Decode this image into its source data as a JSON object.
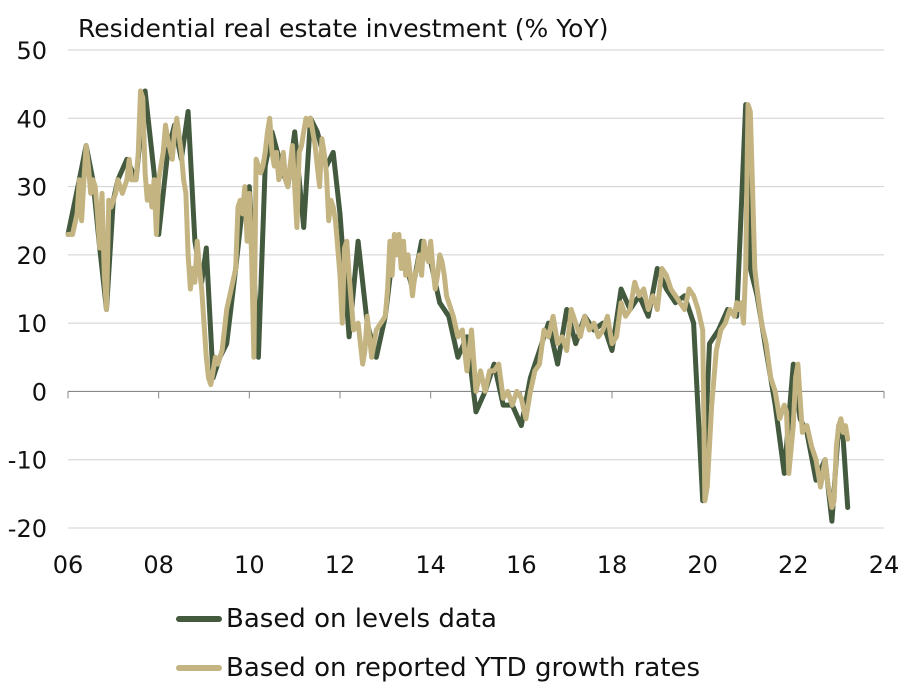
{
  "colors": {
    "levels": "#445a3e",
    "ytd": "#c4b482",
    "grid": "#d0d0d0",
    "axis": "#888888",
    "text": "#111111"
  },
  "chart_data": {
    "type": "line",
    "title": "Residential real estate investment (% YoY)",
    "xlabel": "",
    "ylabel": "",
    "xlim": [
      2006,
      2024
    ],
    "ylim": [
      -20,
      50
    ],
    "x_tick_labels": [
      "06",
      "08",
      "10",
      "12",
      "14",
      "16",
      "18",
      "20",
      "22",
      "24"
    ],
    "y_tick_labels": [
      "50",
      "40",
      "30",
      "20",
      "10",
      "0",
      "-10",
      "-20"
    ],
    "grid": "horizontal",
    "legend_placement": "bottom",
    "series": [
      {
        "name": "Based on levels data",
        "color": "#445a3e",
        "x": [
          2006.0,
          2006.25,
          2006.4,
          2006.55,
          2006.7,
          2006.85,
          2007.0,
          2007.1,
          2007.3,
          2007.5,
          2007.7,
          2007.9,
          2008.0,
          2008.2,
          2008.35,
          2008.5,
          2008.65,
          2008.8,
          2008.95,
          2009.05,
          2009.2,
          2009.35,
          2009.5,
          2009.7,
          2009.85,
          2010.0,
          2010.2,
          2010.35,
          2010.5,
          2010.7,
          2010.85,
          2011.0,
          2011.2,
          2011.35,
          2011.5,
          2011.7,
          2011.85,
          2012.0,
          2012.2,
          2012.4,
          2012.6,
          2012.8,
          2013.0,
          2013.2,
          2013.4,
          2013.6,
          2013.8,
          2014.0,
          2014.2,
          2014.4,
          2014.6,
          2014.8,
          2015.0,
          2015.2,
          2015.4,
          2015.6,
          2015.8,
          2016.0,
          2016.2,
          2016.4,
          2016.6,
          2016.8,
          2017.0,
          2017.2,
          2017.4,
          2017.6,
          2017.8,
          2018.0,
          2018.2,
          2018.4,
          2018.6,
          2018.8,
          2019.0,
          2019.2,
          2019.4,
          2019.6,
          2019.8,
          2020.0,
          2020.15,
          2020.35,
          2020.55,
          2020.75,
          2020.95,
          2021.05,
          2021.2,
          2021.4,
          2021.6,
          2021.8,
          2022.0,
          2022.15,
          2022.3,
          2022.5,
          2022.7,
          2022.85,
          2023.0,
          2023.1,
          2023.2
        ],
        "y": [
          23,
          31,
          36,
          31,
          21,
          12,
          28,
          31,
          34,
          31,
          44,
          32,
          23,
          35,
          39,
          34,
          41,
          22,
          16,
          21,
          2,
          5,
          7,
          18,
          27,
          30,
          5,
          33,
          38,
          33,
          30,
          38,
          24,
          40,
          38,
          33,
          35,
          26,
          8,
          22,
          10,
          5,
          11,
          22,
          20,
          15,
          22,
          19,
          13,
          11,
          5,
          8,
          -3,
          0,
          4,
          -2,
          -2,
          -5,
          2,
          6,
          10,
          4,
          12,
          7,
          11,
          9,
          10,
          6,
          15,
          12,
          14,
          11,
          18,
          15,
          13,
          14,
          10,
          -16,
          7,
          9,
          12,
          11,
          42,
          18,
          14,
          6,
          -2,
          -12,
          4,
          -4,
          -6,
          -13,
          -10,
          -19,
          -5,
          -7,
          -17
        ]
      },
      {
        "name": "Based on reported YTD growth rates",
        "color": "#c4b482",
        "x": [
          2006.0,
          2006.1,
          2006.2,
          2006.25,
          2006.3,
          2006.35,
          2006.4,
          2006.45,
          2006.5,
          2006.55,
          2006.6,
          2006.65,
          2006.7,
          2006.75,
          2006.8,
          2006.85,
          2006.9,
          2006.95,
          2007.0,
          2007.05,
          2007.1,
          2007.2,
          2007.3,
          2007.35,
          2007.4,
          2007.5,
          2007.55,
          2007.6,
          2007.65,
          2007.7,
          2007.75,
          2007.8,
          2007.85,
          2007.9,
          2007.95,
          2008.0,
          2008.05,
          2008.1,
          2008.15,
          2008.2,
          2008.3,
          2008.35,
          2008.4,
          2008.5,
          2008.55,
          2008.6,
          2008.65,
          2008.7,
          2008.75,
          2008.8,
          2008.85,
          2008.9,
          2008.95,
          2009.0,
          2009.05,
          2009.1,
          2009.15,
          2009.2,
          2009.25,
          2009.3,
          2009.35,
          2009.4,
          2009.5,
          2009.6,
          2009.7,
          2009.75,
          2009.8,
          2009.85,
          2009.9,
          2009.95,
          2010.0,
          2010.05,
          2010.1,
          2010.15,
          2010.2,
          2010.25,
          2010.3,
          2010.35,
          2010.4,
          2010.45,
          2010.5,
          2010.55,
          2010.6,
          2010.65,
          2010.7,
          2010.75,
          2010.8,
          2010.85,
          2010.9,
          2010.95,
          2011.0,
          2011.05,
          2011.1,
          2011.15,
          2011.2,
          2011.25,
          2011.3,
          2011.35,
          2011.4,
          2011.45,
          2011.5,
          2011.55,
          2011.6,
          2011.65,
          2011.7,
          2011.75,
          2011.8,
          2011.85,
          2011.9,
          2012.0,
          2012.05,
          2012.1,
          2012.15,
          2012.2,
          2012.3,
          2012.4,
          2012.5,
          2012.55,
          2012.6,
          2012.7,
          2012.8,
          2012.9,
          2013.0,
          2013.05,
          2013.1,
          2013.15,
          2013.2,
          2013.25,
          2013.3,
          2013.35,
          2013.4,
          2013.45,
          2013.5,
          2013.55,
          2013.6,
          2013.65,
          2013.7,
          2013.75,
          2013.8,
          2013.85,
          2013.9,
          2013.95,
          2014.0,
          2014.05,
          2014.1,
          2014.15,
          2014.2,
          2014.25,
          2014.3,
          2014.35,
          2014.4,
          2014.5,
          2014.6,
          2014.7,
          2014.8,
          2014.9,
          2015.0,
          2015.1,
          2015.2,
          2015.3,
          2015.4,
          2015.5,
          2015.6,
          2015.7,
          2015.8,
          2015.9,
          2016.0,
          2016.1,
          2016.2,
          2016.3,
          2016.4,
          2016.5,
          2016.6,
          2016.7,
          2016.8,
          2016.9,
          2017.0,
          2017.1,
          2017.2,
          2017.3,
          2017.4,
          2017.5,
          2017.6,
          2017.7,
          2017.8,
          2017.9,
          2018.0,
          2018.1,
          2018.2,
          2018.3,
          2018.4,
          2018.5,
          2018.6,
          2018.7,
          2018.8,
          2018.9,
          2019.0,
          2019.1,
          2019.2,
          2019.3,
          2019.4,
          2019.5,
          2019.6,
          2019.7,
          2019.8,
          2019.9,
          2020.0,
          2020.05,
          2020.1,
          2020.2,
          2020.3,
          2020.4,
          2020.5,
          2020.6,
          2020.7,
          2020.75,
          2020.8,
          2020.85,
          2020.9,
          2020.95,
          2021.0,
          2021.05,
          2021.1,
          2021.15,
          2021.2,
          2021.3,
          2021.4,
          2021.5,
          2021.6,
          2021.7,
          2021.8,
          2021.85,
          2021.9,
          2022.0,
          2022.05,
          2022.1,
          2022.15,
          2022.2,
          2022.3,
          2022.4,
          2022.5,
          2022.55,
          2022.6,
          2022.7,
          2022.75,
          2022.8,
          2022.85,
          2022.9,
          2022.95,
          2023.0,
          2023.05,
          2023.1,
          2023.15,
          2023.2
        ],
        "y": [
          23,
          23,
          26,
          31,
          25,
          31,
          36,
          33,
          29,
          31,
          30,
          26,
          21,
          29,
          17,
          12,
          28,
          27,
          28,
          29,
          31,
          29,
          31,
          34,
          31,
          31,
          35,
          44,
          43,
          32,
          28,
          30,
          27,
          31,
          23,
          31,
          33,
          35,
          39,
          37,
          34,
          38,
          40,
          35,
          31,
          29,
          20,
          15,
          18,
          16,
          22,
          18,
          15,
          10,
          5,
          2,
          1,
          3,
          5,
          4,
          5,
          6,
          12,
          15,
          18,
          27,
          28,
          26,
          30,
          22,
          29,
          20,
          5,
          34,
          33,
          32,
          33,
          35,
          38,
          40,
          35,
          33,
          35,
          31,
          32,
          35,
          31,
          30,
          33,
          36,
          30,
          24,
          35,
          36,
          38,
          40,
          39,
          40,
          38,
          36,
          33,
          30,
          37,
          35,
          32,
          25,
          28,
          27,
          25,
          17,
          10,
          21,
          22,
          17,
          9,
          10,
          4,
          6,
          11,
          5,
          9,
          10,
          11,
          15,
          22,
          17,
          23,
          20,
          23,
          18,
          22,
          17,
          20,
          17,
          14,
          17,
          18,
          20,
          17,
          22,
          20,
          19,
          22,
          18,
          15,
          17,
          20,
          19,
          17,
          14,
          13,
          11,
          8,
          9,
          3,
          9,
          0,
          3,
          0,
          3,
          3,
          4,
          -1,
          0,
          -2,
          0,
          -1,
          -4,
          0,
          3,
          4,
          9,
          8,
          11,
          7,
          8,
          6,
          12,
          10,
          8,
          11,
          9,
          10,
          8,
          9,
          11,
          7,
          8,
          13,
          11,
          12,
          16,
          14,
          15,
          12,
          14,
          12,
          18,
          17,
          15,
          14,
          13,
          12,
          15,
          14,
          12,
          9,
          -16,
          -14,
          -2,
          6,
          9,
          10,
          12,
          11,
          13,
          12,
          13,
          10,
          18,
          42,
          41,
          30,
          18,
          15,
          10,
          7,
          2,
          0,
          -4,
          -2,
          -3,
          -12,
          -5,
          2,
          4,
          -1,
          -6,
          -5,
          -8,
          -10,
          -12,
          -14,
          -10,
          -13,
          -15,
          -17,
          -16,
          -8,
          -5,
          -4,
          -6,
          -5,
          -7
        ]
      }
    ]
  }
}
